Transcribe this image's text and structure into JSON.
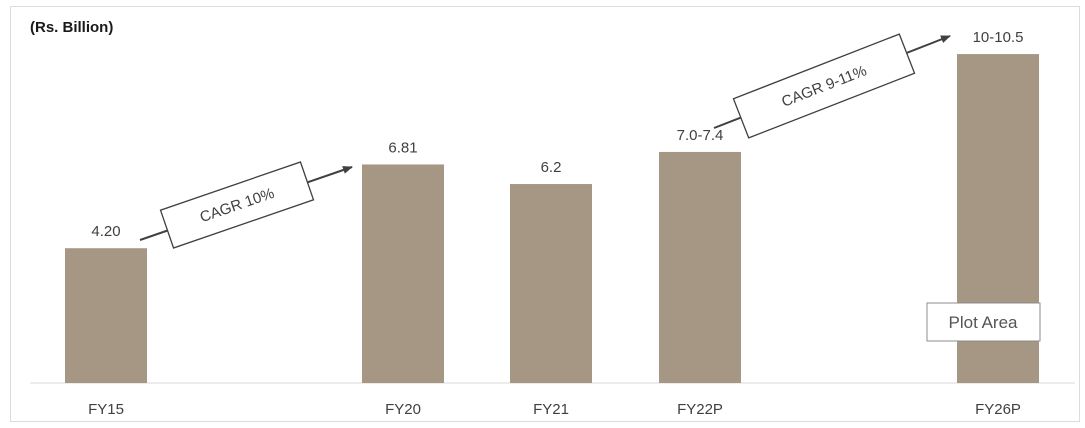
{
  "chart_data": {
    "type": "bar",
    "unit_label": "(Rs. Billion)",
    "categories": [
      "FY15",
      "FY20",
      "FY21",
      "FY22P",
      "FY26P"
    ],
    "values": [
      4.2,
      6.81,
      6.2,
      7.2,
      10.25
    ],
    "value_labels": [
      "4.20",
      "6.81",
      "6.2",
      "7.0-7.4",
      "10-10.5"
    ],
    "ylim": [
      0,
      11
    ],
    "bar_color": "#a69684",
    "annotations": [
      {
        "text": "CAGR 10%",
        "from": "FY15",
        "to": "FY20"
      },
      {
        "text": "CAGR 9-11%",
        "from": "FY22P",
        "to": "FY26P"
      }
    ],
    "tooltip": "Plot Area",
    "grid": false,
    "legend": "none"
  }
}
